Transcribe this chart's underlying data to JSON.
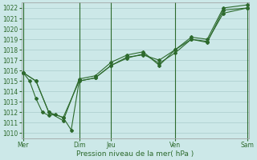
{
  "bg_color": "#cce8e8",
  "grid_color": "#aacccc",
  "line_color": "#2d6a2d",
  "marker_color": "#2d6a2d",
  "title": "Pression niveau de la mer( hPa )",
  "ylim": [
    1009.5,
    1022.5
  ],
  "yticks": [
    1010,
    1011,
    1012,
    1013,
    1014,
    1015,
    1016,
    1017,
    1018,
    1019,
    1020,
    1021,
    1022
  ],
  "xlim": [
    -0.1,
    14.1
  ],
  "xtick_labels": [
    "Mer",
    "Dim",
    "Jeu",
    "Ven",
    "Sam"
  ],
  "xtick_pos": [
    0,
    3.5,
    5.5,
    9.5,
    14
  ],
  "vlines_dark": [
    0,
    3.5,
    5.5,
    9.5,
    14
  ],
  "series1": {
    "x": [
      0,
      0.4,
      0.8,
      1.2,
      1.6,
      2.0,
      2.5,
      3.0,
      3.5,
      4.5,
      5.5,
      6.5,
      7.5,
      8.5,
      9.5,
      10.5,
      11.5,
      12.5,
      14.0
    ],
    "y": [
      1015.8,
      1015.0,
      1013.3,
      1012.0,
      1011.7,
      1011.8,
      1011.5,
      1010.3,
      1015.0,
      1015.3,
      1016.5,
      1017.3,
      1017.5,
      1017.0,
      1018.0,
      1019.0,
      1018.8,
      1021.5,
      1022.0
    ]
  },
  "series2": {
    "x": [
      0,
      0.8,
      1.6,
      2.5,
      3.5,
      4.5,
      5.5,
      6.5,
      7.5,
      8.5,
      9.5,
      10.5,
      11.5,
      12.5,
      14.0
    ],
    "y": [
      1015.8,
      1015.0,
      1012.0,
      1011.2,
      1015.2,
      1015.5,
      1016.8,
      1017.5,
      1017.8,
      1016.5,
      1018.0,
      1019.2,
      1019.0,
      1022.0,
      1022.3
    ]
  },
  "series3": {
    "x": [
      0,
      0.8,
      1.6,
      2.5,
      3.5,
      4.5,
      5.5,
      6.5,
      7.5,
      8.5,
      9.5,
      10.5,
      11.5,
      12.5,
      14.0
    ],
    "y": [
      1015.8,
      1015.0,
      1012.0,
      1011.5,
      1015.0,
      1015.3,
      1016.5,
      1017.2,
      1017.6,
      1016.7,
      1017.7,
      1019.0,
      1018.7,
      1021.8,
      1022.0
    ]
  },
  "ytick_fontsize": 5.5,
  "xtick_fontsize": 5.5,
  "xlabel_fontsize": 6.5
}
